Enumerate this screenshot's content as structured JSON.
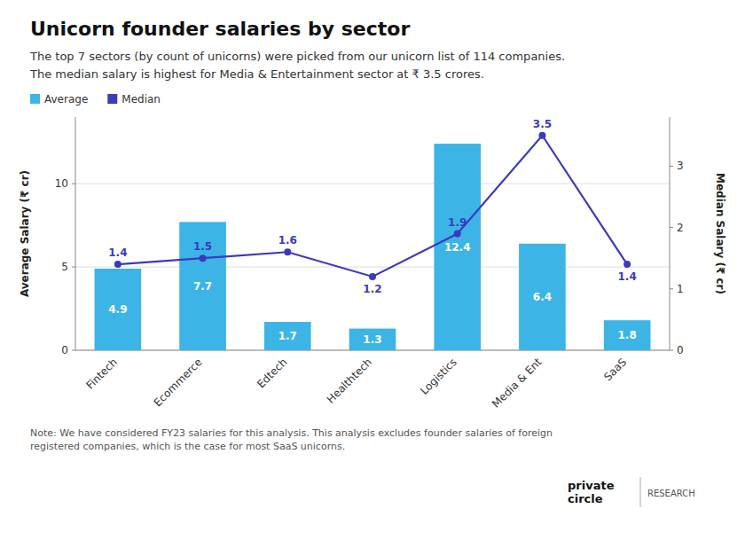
{
  "chart_data": {
    "type": "bar",
    "title": "Unicorn founder salaries by sector",
    "subtitle": "The top 7 sectors (by count of unicorns) were picked from our unicorn list of 114 companies.\nThe median salary is highest for Media & Entertainment sector at ₹ 3.5 crores.",
    "categories": [
      "Fintech",
      "Ecommerce",
      "Edtech",
      "Healthtech",
      "Logistics",
      "Media & Ent",
      "SaaS"
    ],
    "series": [
      {
        "name": "Average",
        "type": "bar",
        "color": "#3cb4e6",
        "values": [
          4.9,
          7.7,
          1.7,
          1.3,
          12.4,
          6.4,
          1.8
        ]
      },
      {
        "name": "Median",
        "type": "line",
        "axis": "y2",
        "color": "#3a3abf",
        "marker": "circle",
        "values": [
          1.4,
          1.5,
          1.6,
          1.2,
          1.9,
          3.5,
          1.4
        ]
      }
    ],
    "data_labels": true,
    "y_label": "Average Salary (₹ cr)",
    "y2_label": "Median Salary (₹ cr)",
    "ylim": [
      0,
      14
    ],
    "yticks": [
      0,
      5,
      10
    ],
    "y2lim": [
      0,
      3.8
    ],
    "y2ticks": [
      0,
      1,
      2,
      3
    ],
    "grid": true,
    "legend": "upper left",
    "annotations": [
      "Note: We have considered FY23 salaries for this analysis. This analysis excludes founder salaries of foreign\nregistered companies, which is the case for most SaaS unicorns.",
      "private\ncircle",
      "RESEARCH"
    ]
  }
}
